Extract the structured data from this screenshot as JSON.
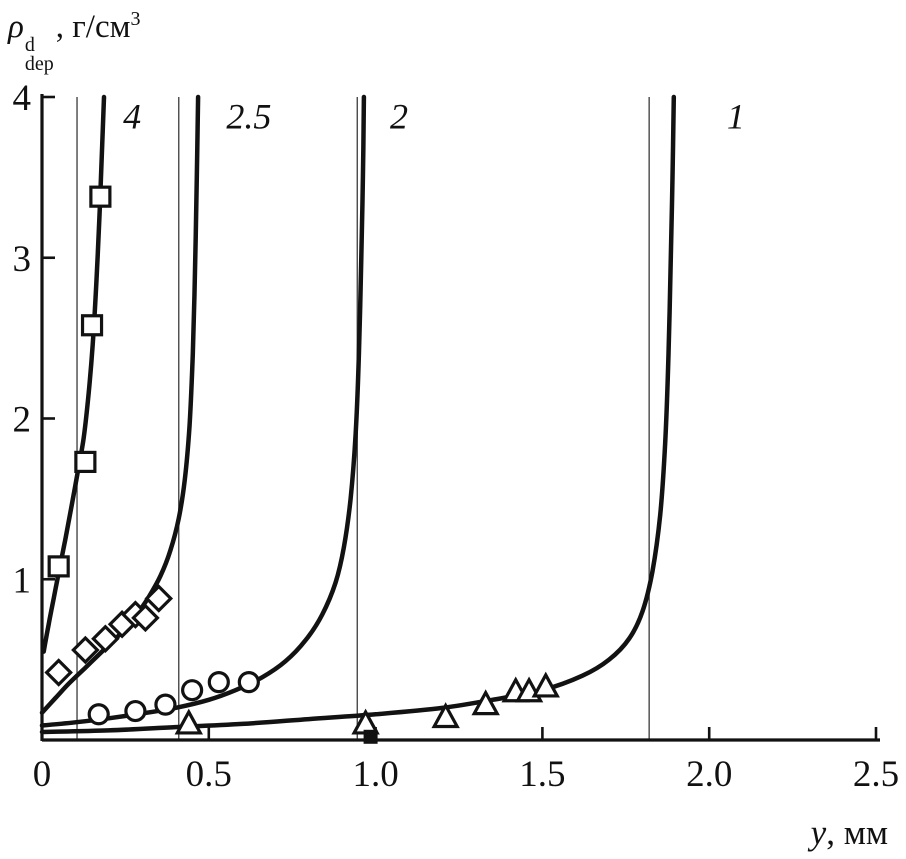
{
  "figure": {
    "y_axis_title": {
      "base": "ρ",
      "sup": "d",
      "sub": "dep",
      "rest": ", г/см",
      "rest_sup": "3"
    },
    "x_axis_title": {
      "var": "y",
      "rest": ", мм"
    }
  },
  "chart_data": {
    "type": "line",
    "title": "",
    "xlabel": "y, мм",
    "ylabel": "ρ_dep^d, г/см³",
    "xlim": [
      0,
      2.5
    ],
    "ylim": [
      0,
      4
    ],
    "x_ticks": [
      0,
      0.5,
      1.0,
      1.5,
      2.0,
      2.5
    ],
    "x_tick_labels": [
      "0",
      "0.5",
      "1.0",
      "1.5",
      "2.0",
      "2.5"
    ],
    "y_ticks": [
      1,
      2,
      3,
      4
    ],
    "y_tick_labels": [
      "1",
      "2",
      "3",
      "4"
    ],
    "grid": false,
    "legend": "curve labels inline at top",
    "colors": {
      "line": "#121212",
      "guide": "#3a3a3a"
    },
    "guide_lines_x": [
      0.105,
      0.41,
      0.945,
      1.82
    ],
    "series": [
      {
        "name": "1",
        "label": "1",
        "label_pos": [
          2.08,
          3.88
        ],
        "marker": "triangle",
        "curve": [
          [
            0,
            0.05
          ],
          [
            0.2,
            0.06
          ],
          [
            0.4,
            0.08
          ],
          [
            0.6,
            0.1
          ],
          [
            0.8,
            0.13
          ],
          [
            1.0,
            0.16
          ],
          [
            1.2,
            0.2
          ],
          [
            1.35,
            0.25
          ],
          [
            1.5,
            0.31
          ],
          [
            1.62,
            0.4
          ],
          [
            1.7,
            0.5
          ],
          [
            1.76,
            0.63
          ],
          [
            1.8,
            0.8
          ],
          [
            1.83,
            1.05
          ],
          [
            1.853,
            1.4
          ],
          [
            1.868,
            1.85
          ],
          [
            1.878,
            2.4
          ],
          [
            1.885,
            3.0
          ],
          [
            1.89,
            3.5
          ],
          [
            1.894,
            4.0
          ]
        ],
        "points": [
          [
            0.44,
            0.1
          ],
          [
            0.97,
            0.1
          ],
          [
            1.21,
            0.14
          ],
          [
            1.33,
            0.22
          ],
          [
            1.42,
            0.3
          ],
          [
            1.46,
            0.3
          ],
          [
            1.51,
            0.33
          ]
        ]
      },
      {
        "name": "2",
        "label": "2",
        "label_pos": [
          1.07,
          3.88
        ],
        "marker": "circle",
        "curve": [
          [
            0,
            0.09
          ],
          [
            0.1,
            0.11
          ],
          [
            0.2,
            0.135
          ],
          [
            0.3,
            0.165
          ],
          [
            0.4,
            0.2
          ],
          [
            0.5,
            0.25
          ],
          [
            0.58,
            0.31
          ],
          [
            0.66,
            0.39
          ],
          [
            0.73,
            0.49
          ],
          [
            0.79,
            0.62
          ],
          [
            0.84,
            0.78
          ],
          [
            0.88,
            0.98
          ],
          [
            0.905,
            1.2
          ],
          [
            0.925,
            1.5
          ],
          [
            0.94,
            1.9
          ],
          [
            0.95,
            2.4
          ],
          [
            0.957,
            3.0
          ],
          [
            0.962,
            3.5
          ],
          [
            0.965,
            4.0
          ]
        ],
        "points": [
          [
            0.17,
            0.16
          ],
          [
            0.28,
            0.18
          ],
          [
            0.37,
            0.22
          ],
          [
            0.45,
            0.31
          ],
          [
            0.53,
            0.36
          ],
          [
            0.62,
            0.36
          ]
        ]
      },
      {
        "name": "2.5",
        "label": "2.5",
        "label_pos": [
          0.62,
          3.88
        ],
        "marker": "diamond",
        "curve": [
          [
            0,
            0.17
          ],
          [
            0.04,
            0.26
          ],
          [
            0.08,
            0.35
          ],
          [
            0.13,
            0.45
          ],
          [
            0.18,
            0.55
          ],
          [
            0.23,
            0.65
          ],
          [
            0.28,
            0.77
          ],
          [
            0.32,
            0.89
          ],
          [
            0.355,
            1.02
          ],
          [
            0.385,
            1.18
          ],
          [
            0.41,
            1.38
          ],
          [
            0.428,
            1.62
          ],
          [
            0.442,
            1.95
          ],
          [
            0.452,
            2.4
          ],
          [
            0.459,
            2.95
          ],
          [
            0.464,
            3.5
          ],
          [
            0.468,
            4.0
          ]
        ],
        "points": [
          [
            0.05,
            0.42
          ],
          [
            0.13,
            0.56
          ],
          [
            0.19,
            0.63
          ],
          [
            0.24,
            0.72
          ],
          [
            0.28,
            0.78
          ],
          [
            0.31,
            0.76
          ],
          [
            0.35,
            0.88
          ]
        ]
      },
      {
        "name": "4",
        "label": "4",
        "label_pos": [
          0.27,
          3.88
        ],
        "marker": "square",
        "curve": [
          [
            0.005,
            0.55
          ],
          [
            0.02,
            0.72
          ],
          [
            0.035,
            0.88
          ],
          [
            0.05,
            1.04
          ],
          [
            0.07,
            1.25
          ],
          [
            0.09,
            1.47
          ],
          [
            0.11,
            1.7
          ],
          [
            0.125,
            1.88
          ],
          [
            0.14,
            2.16
          ],
          [
            0.152,
            2.46
          ],
          [
            0.163,
            2.85
          ],
          [
            0.172,
            3.25
          ],
          [
            0.179,
            3.62
          ],
          [
            0.184,
            3.9
          ],
          [
            0.186,
            4.0
          ]
        ],
        "points": [
          [
            0.05,
            1.08
          ],
          [
            0.13,
            1.73
          ],
          [
            0.15,
            2.58
          ],
          [
            0.175,
            3.38
          ]
        ]
      }
    ],
    "extra_points": [
      {
        "marker": "square-filled",
        "xy": [
          0.985,
          0.02
        ]
      }
    ]
  }
}
